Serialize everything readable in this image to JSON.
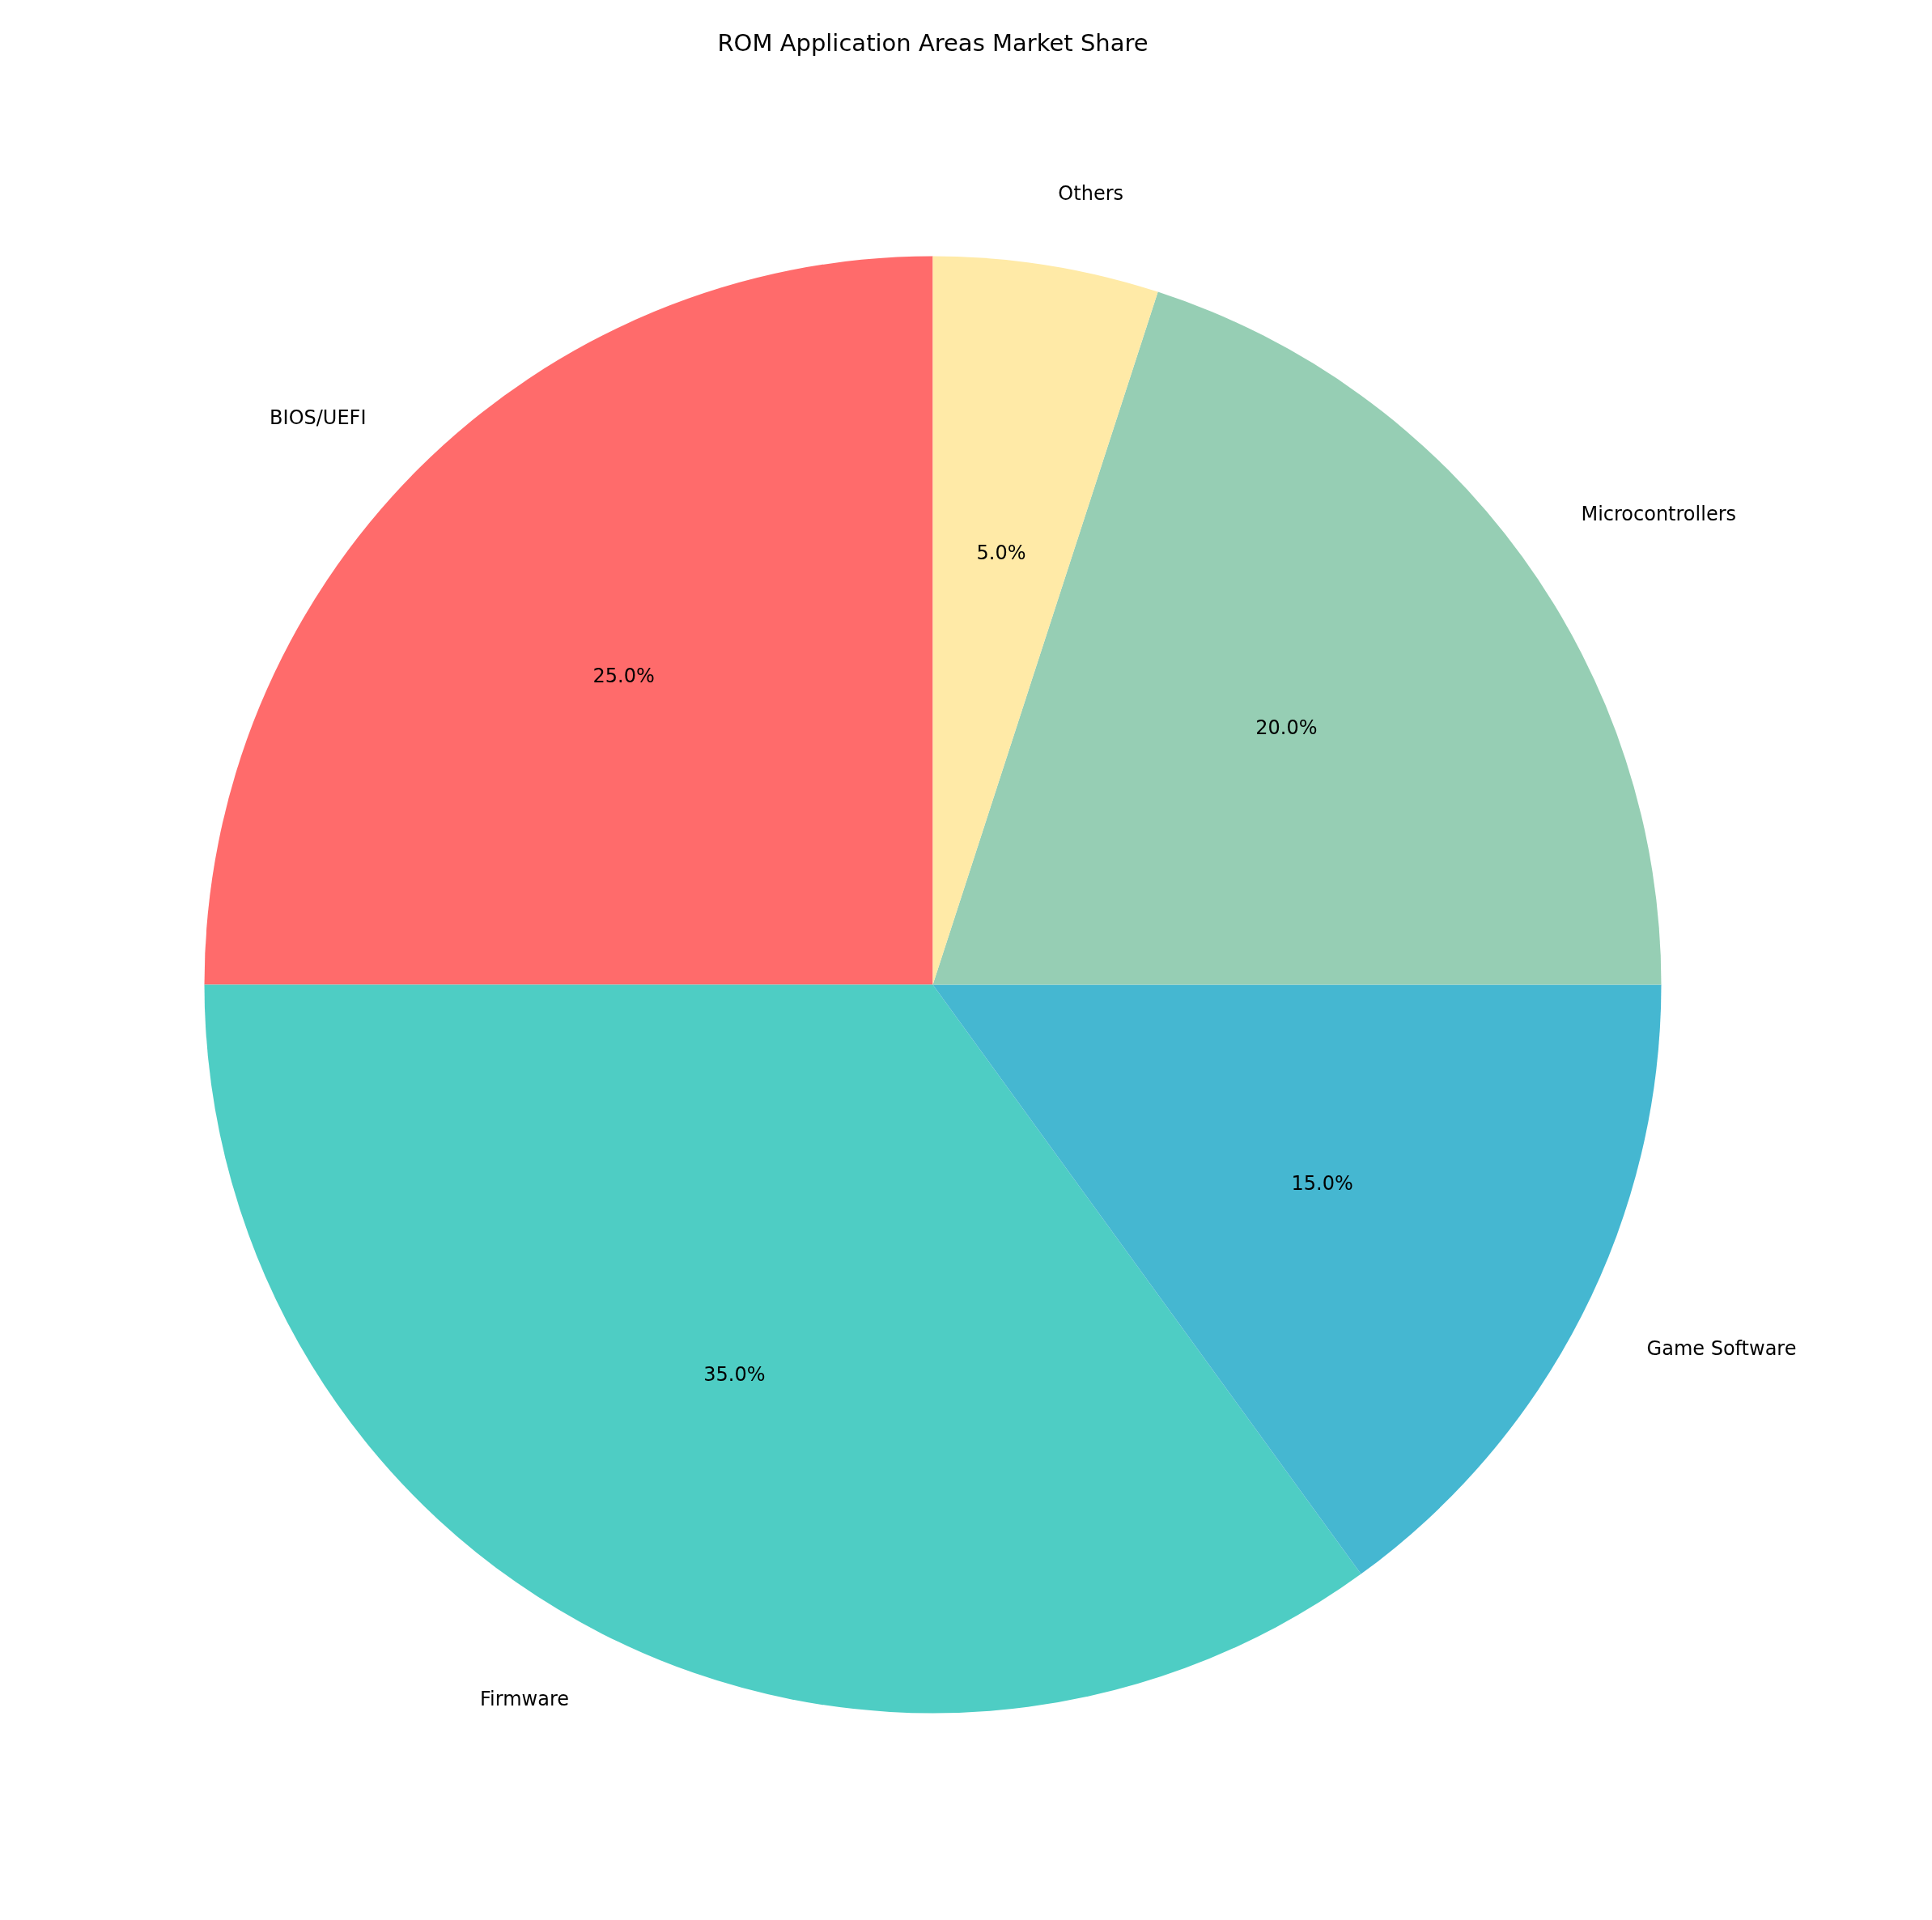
{
  "chart_data": {
    "type": "pie",
    "title": "ROM Application Areas Market Share",
    "categories": [
      "BIOS/UEFI",
      "Firmware",
      "Game Software",
      "Microcontrollers",
      "Others"
    ],
    "values": [
      25,
      35,
      15,
      20,
      5
    ],
    "value_labels": [
      "25.0%",
      "35.0%",
      "15.0%",
      "20.0%",
      "5.0%"
    ],
    "colors": [
      "#ff6b6b",
      "#4ecdc4",
      "#45b7d1",
      "#96ceb4",
      "#ffeaa7"
    ]
  }
}
